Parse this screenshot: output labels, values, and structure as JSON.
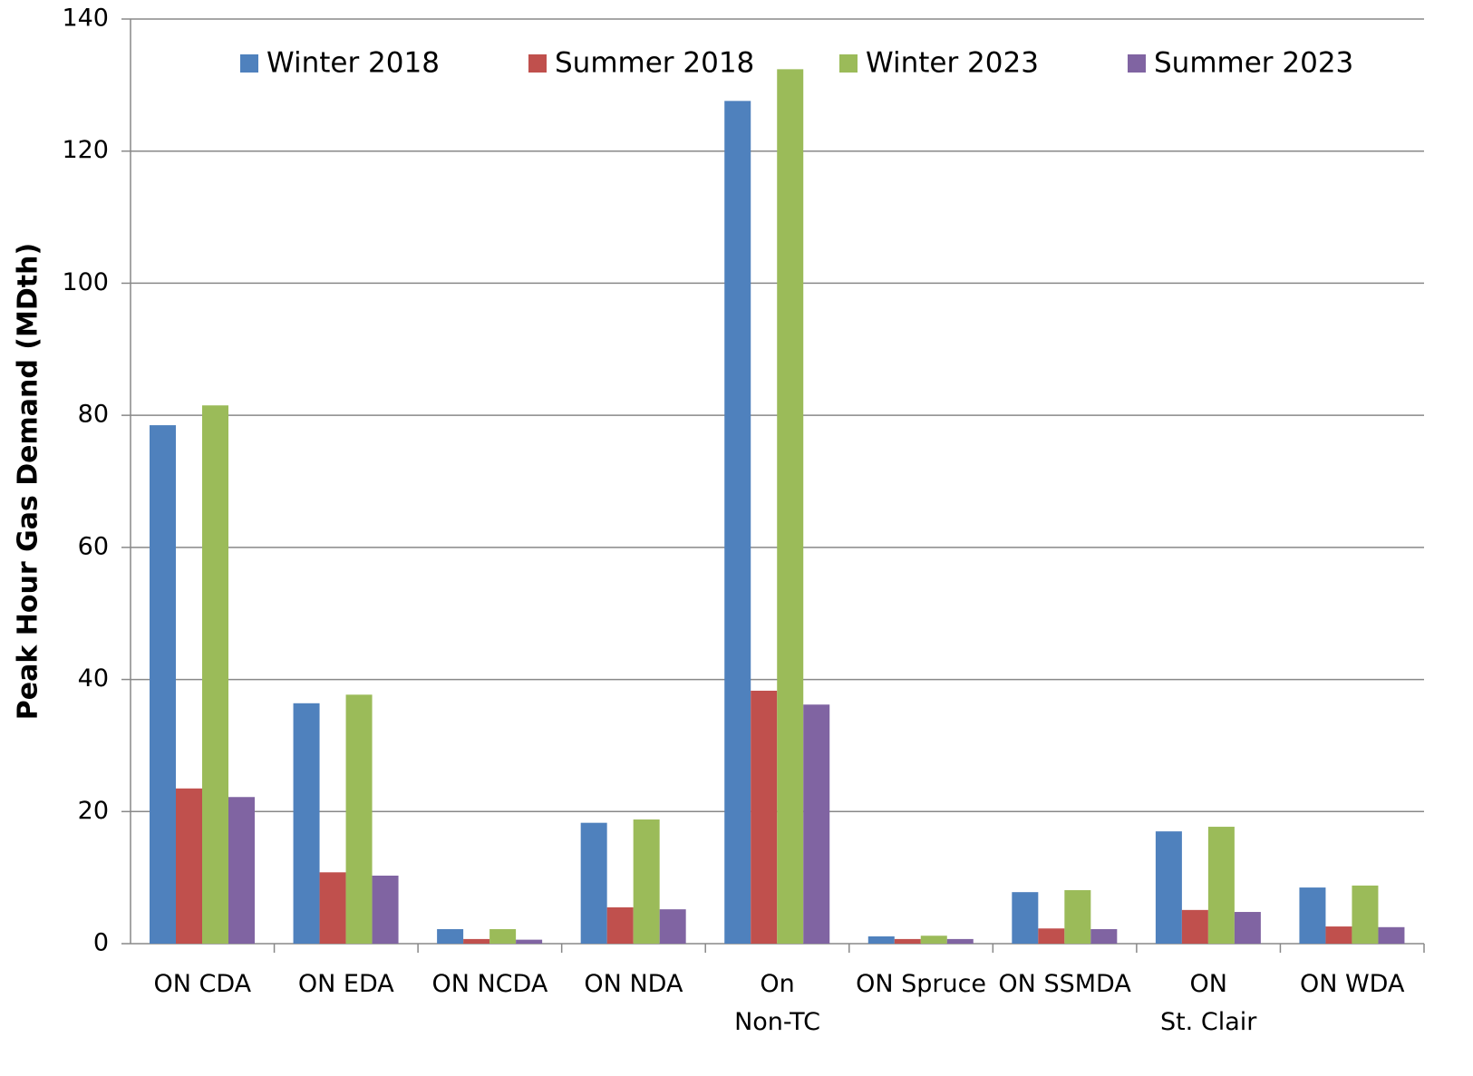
{
  "chart_data": {
    "type": "bar",
    "y_label": "Peak Hour Gas Demand (MDth)",
    "categories": [
      "ON CDA",
      "ON EDA",
      "ON NCDA",
      "ON NDA",
      "On\nNon-TC",
      "ON Spruce",
      "ON SSMDA",
      "ON\nSt. Clair",
      "ON WDA"
    ],
    "series": [
      {
        "name": "Winter 2018",
        "color": "#4f81bd",
        "values": [
          78.5,
          36.4,
          2.2,
          18.3,
          127.6,
          1.1,
          7.8,
          17.0,
          8.5
        ]
      },
      {
        "name": "Summer 2018",
        "color": "#c0504d",
        "values": [
          23.5,
          10.8,
          0.7,
          5.5,
          38.3,
          0.7,
          2.3,
          5.1,
          2.6
        ]
      },
      {
        "name": "Winter 2023",
        "color": "#9bbb59",
        "values": [
          81.5,
          37.7,
          2.2,
          18.8,
          132.4,
          1.2,
          8.1,
          17.7,
          8.8
        ]
      },
      {
        "name": "Summer 2023",
        "color": "#8064a2",
        "values": [
          22.2,
          10.3,
          0.6,
          5.2,
          36.2,
          0.7,
          2.2,
          4.8,
          2.5
        ]
      }
    ],
    "ylim": [
      0,
      140
    ],
    "yticks": [
      0,
      20,
      40,
      60,
      80,
      100,
      120,
      140
    ],
    "grid": true,
    "legend": "top"
  }
}
